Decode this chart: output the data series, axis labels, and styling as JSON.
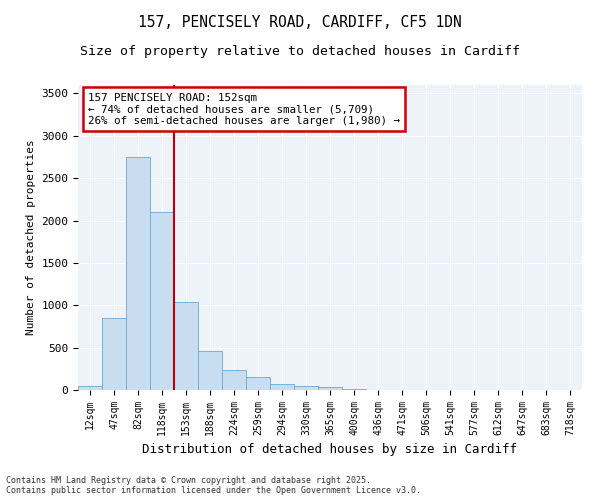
{
  "title1": "157, PENCISELY ROAD, CARDIFF, CF5 1DN",
  "title2": "Size of property relative to detached houses in Cardiff",
  "xlabel": "Distribution of detached houses by size in Cardiff",
  "ylabel": "Number of detached properties",
  "categories": [
    "12sqm",
    "47sqm",
    "82sqm",
    "118sqm",
    "153sqm",
    "188sqm",
    "224sqm",
    "259sqm",
    "294sqm",
    "330sqm",
    "365sqm",
    "400sqm",
    "436sqm",
    "471sqm",
    "506sqm",
    "541sqm",
    "577sqm",
    "612sqm",
    "647sqm",
    "683sqm",
    "718sqm"
  ],
  "values": [
    50,
    850,
    2750,
    2100,
    1040,
    460,
    235,
    155,
    70,
    45,
    30,
    15,
    5,
    3,
    1,
    0,
    0,
    0,
    0,
    0,
    0
  ],
  "bar_color": "#c9ddf0",
  "bar_edge_color": "#6aaad4",
  "vline_color": "#c00000",
  "annotation_title": "157 PENCISELY ROAD: 152sqm",
  "annotation_line1": "← 74% of detached houses are smaller (5,709)",
  "annotation_line2": "26% of semi-detached houses are larger (1,980) →",
  "annotation_box_color": "#cc0000",
  "ylim": [
    0,
    3600
  ],
  "yticks": [
    0,
    500,
    1000,
    1500,
    2000,
    2500,
    3000,
    3500
  ],
  "background_color": "#eef3fa",
  "footer1": "Contains HM Land Registry data © Crown copyright and database right 2025.",
  "footer2": "Contains public sector information licensed under the Open Government Licence v3.0.",
  "title_fontsize": 10.5,
  "subtitle_fontsize": 9.5
}
